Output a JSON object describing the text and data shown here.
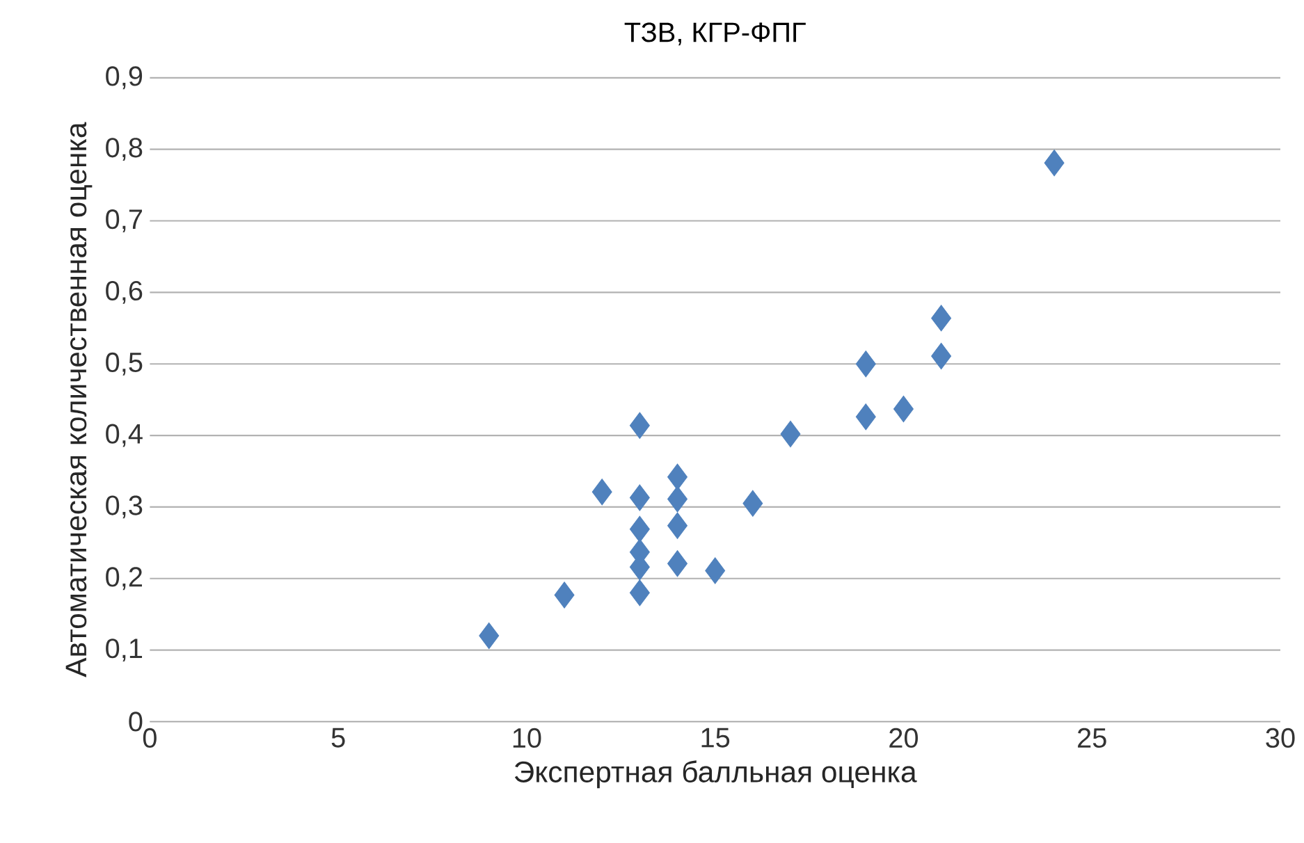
{
  "chart_data": {
    "type": "scatter",
    "title": "ТЗВ, КГР-ФПГ",
    "xlabel": "Экспертная балльная оценка",
    "ylabel": "Автоматическая количественная оценка",
    "x": [
      9,
      11,
      12,
      13,
      13,
      13,
      13,
      13,
      13,
      14,
      14,
      14,
      14,
      15,
      16,
      17,
      19,
      19,
      20,
      21,
      21,
      24
    ],
    "values": [
      0.12,
      0.177,
      0.321,
      0.414,
      0.313,
      0.269,
      0.237,
      0.216,
      0.18,
      0.342,
      0.311,
      0.274,
      0.221,
      0.211,
      0.305,
      0.402,
      0.5,
      0.426,
      0.437,
      0.564,
      0.511,
      0.781
    ],
    "color": "#4f81bd",
    "marker": "diamond",
    "xlim": [
      0,
      30
    ],
    "xticks": [
      0,
      5,
      10,
      15,
      20,
      25,
      30
    ],
    "ylim": [
      0,
      0.9
    ],
    "yticks": [
      {
        "value": 0,
        "label": "0"
      },
      {
        "value": 0.1,
        "label": "0,1"
      },
      {
        "value": 0.2,
        "label": "0,2"
      },
      {
        "value": 0.3,
        "label": "0,3"
      },
      {
        "value": 0.4,
        "label": "0,4"
      },
      {
        "value": 0.5,
        "label": "0,5"
      },
      {
        "value": 0.6,
        "label": "0,6"
      },
      {
        "value": 0.7,
        "label": "0,7"
      },
      {
        "value": 0.8,
        "label": "0,8"
      },
      {
        "value": 0.9,
        "label": "0,9"
      }
    ],
    "grid": "y"
  }
}
